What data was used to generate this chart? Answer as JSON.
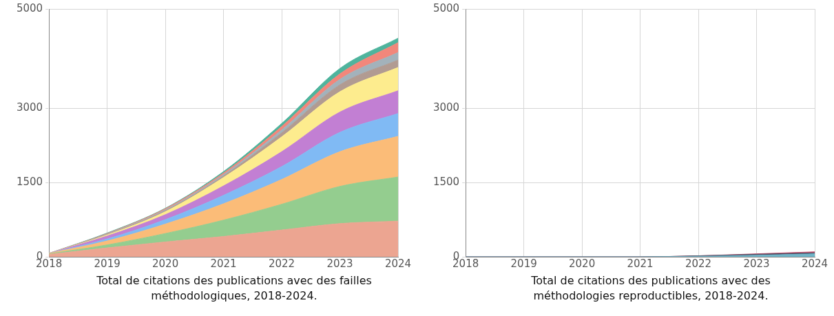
{
  "chart_data": [
    {
      "type": "area",
      "title": "Total de citations des publications avec des failles méthodologiques, 2018-2024.",
      "stacked": true,
      "x": [
        2018,
        2019,
        2020,
        2021,
        2022,
        2023,
        2024
      ],
      "xlim": [
        2018,
        2024
      ],
      "xticks": [
        2018,
        2019,
        2020,
        2021,
        2022,
        2023,
        2024
      ],
      "ylim": [
        0,
        5000
      ],
      "yticks": [
        0,
        1500,
        3000,
        5000
      ],
      "grid": true,
      "legend": false,
      "series": [
        {
          "color": "#eca591",
          "values": [
            50,
            180,
            300,
            410,
            540,
            670,
            720
          ]
        },
        {
          "color": "#94cd8f",
          "values": [
            10,
            60,
            170,
            330,
            520,
            750,
            890
          ]
        },
        {
          "color": "#fbbc78",
          "values": [
            10,
            80,
            190,
            330,
            500,
            700,
            820
          ]
        },
        {
          "color": "#80baf4",
          "values": [
            0,
            40,
            90,
            170,
            260,
            390,
            460
          ]
        },
        {
          "color": "#c27fd3",
          "values": [
            0,
            60,
            100,
            190,
            300,
            410,
            460
          ]
        },
        {
          "color": "#fdec8e",
          "values": [
            0,
            20,
            60,
            170,
            300,
            410,
            470
          ]
        },
        {
          "color": "#b19b92",
          "values": [
            0,
            10,
            20,
            30,
            80,
            140,
            150
          ]
        },
        {
          "color": "#a3b2bb",
          "values": [
            0,
            10,
            20,
            30,
            60,
            110,
            150
          ]
        },
        {
          "color": "#f2877b",
          "values": [
            0,
            10,
            20,
            30,
            70,
            110,
            200
          ]
        },
        {
          "color": "#4fb49d",
          "values": [
            0,
            10,
            10,
            30,
            60,
            110,
            90
          ]
        }
      ]
    },
    {
      "type": "area",
      "title": "Total de citations des publications avec des méthodologies reproductibles, 2018-2024.",
      "stacked": true,
      "x": [
        2018,
        2019,
        2020,
        2021,
        2022,
        2023,
        2024
      ],
      "xlim": [
        2018,
        2024
      ],
      "xticks": [
        2018,
        2019,
        2020,
        2021,
        2022,
        2023,
        2024
      ],
      "ylim": [
        0,
        5000
      ],
      "yticks": [
        0,
        1500,
        3000,
        5000
      ],
      "grid": true,
      "legend": false,
      "series": [
        {
          "color": "#6fb4c8",
          "values": [
            0,
            0,
            0,
            0,
            10,
            30,
            60
          ]
        },
        {
          "color": "#4a4a5e",
          "values": [
            0,
            0,
            0,
            0,
            10,
            20,
            20
          ]
        },
        {
          "color": "#c8506e",
          "values": [
            0,
            0,
            0,
            0,
            0,
            10,
            20
          ]
        }
      ]
    }
  ]
}
